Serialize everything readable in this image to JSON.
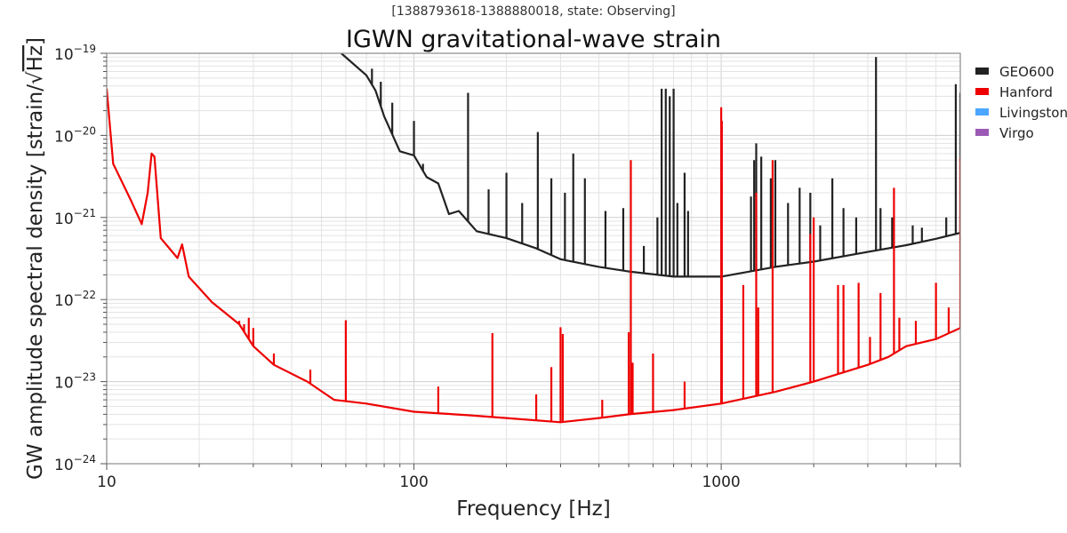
{
  "chart_data": {
    "type": "line",
    "subtitle": "[1388793618-1388880018, state: Observing]",
    "title": "IGWN gravitational-wave strain",
    "xlabel": "Frequency [Hz]",
    "ylabel_text": "GW amplitude spectral density [strain/",
    "ylabel_sqrt": "√",
    "ylabel_unit": "Hz",
    "ylabel_close": "]",
    "xscale": "log",
    "yscale": "log",
    "xlim": [
      10,
      6000
    ],
    "ylim": [
      1e-24,
      1e-19
    ],
    "grid": true,
    "legend_position": "outside-right",
    "xticks": [
      {
        "value": 10,
        "label": "10"
      },
      {
        "value": 100,
        "label": "100"
      },
      {
        "value": 1000,
        "label": "1000"
      }
    ],
    "yticks": [
      {
        "value": 1e-19,
        "base": "10",
        "exp": "−19"
      },
      {
        "value": 1e-20,
        "base": "10",
        "exp": "−20"
      },
      {
        "value": 1e-21,
        "base": "10",
        "exp": "−21"
      },
      {
        "value": 1e-22,
        "base": "10",
        "exp": "−22"
      },
      {
        "value": 1e-23,
        "base": "10",
        "exp": "−23"
      },
      {
        "value": 1e-24,
        "base": "10",
        "exp": "−24"
      }
    ],
    "series": [
      {
        "name": "GEO600",
        "color": "#222222",
        "baseline": [
          [
            58,
            1.3e-19
          ],
          [
            70,
            5.4e-20
          ],
          [
            75,
            3.5e-20
          ],
          [
            80,
            1.7e-20
          ],
          [
            90,
            6.4e-21
          ],
          [
            100,
            5.7e-21
          ],
          [
            110,
            3.1e-21
          ],
          [
            120,
            2.6e-21
          ],
          [
            130,
            1.1e-21
          ],
          [
            140,
            1.2e-21
          ],
          [
            160,
            6.8e-22
          ],
          [
            200,
            5.6e-22
          ],
          [
            250,
            4.2e-22
          ],
          [
            300,
            3.1e-22
          ],
          [
            400,
            2.5e-22
          ],
          [
            500,
            2.2e-22
          ],
          [
            700,
            1.9e-22
          ],
          [
            1000,
            1.9e-22
          ],
          [
            1500,
            2.5e-22
          ],
          [
            2000,
            2.9e-22
          ],
          [
            3000,
            3.8e-22
          ],
          [
            4000,
            4.6e-22
          ],
          [
            5000,
            5.5e-22
          ],
          [
            6000,
            6.5e-22
          ]
        ],
        "spikes": [
          [
            73,
            6.5e-20
          ],
          [
            78,
            4.5e-20
          ],
          [
            85,
            2.5e-20
          ],
          [
            100,
            1.5e-20
          ],
          [
            107,
            4.5e-21
          ],
          [
            150,
            3.3e-20
          ],
          [
            175,
            2.2e-21
          ],
          [
            200,
            3.5e-21
          ],
          [
            225,
            1.5e-21
          ],
          [
            253,
            1.1e-20
          ],
          [
            280,
            3e-21
          ],
          [
            310,
            2e-21
          ],
          [
            330,
            6e-21
          ],
          [
            360,
            3e-21
          ],
          [
            420,
            1.2e-21
          ],
          [
            480,
            1.3e-21
          ],
          [
            560,
            4.5e-22
          ],
          [
            620,
            1e-21
          ],
          [
            640,
            3.7e-20
          ],
          [
            660,
            3.7e-20
          ],
          [
            680,
            3e-20
          ],
          [
            700,
            3.7e-20
          ],
          [
            720,
            1.5e-21
          ],
          [
            760,
            3.5e-21
          ],
          [
            780,
            1.2e-21
          ],
          [
            1250,
            1.8e-21
          ],
          [
            1280,
            5e-21
          ],
          [
            1300,
            8e-21
          ],
          [
            1350,
            5.5e-21
          ],
          [
            1450,
            3e-21
          ],
          [
            1500,
            5e-21
          ],
          [
            1650,
            1.5e-21
          ],
          [
            1800,
            2.3e-21
          ],
          [
            1950,
            2e-21
          ],
          [
            2100,
            8e-22
          ],
          [
            2300,
            3e-21
          ],
          [
            2500,
            1.3e-21
          ],
          [
            2750,
            1e-21
          ],
          [
            3190,
            9e-20
          ],
          [
            3300,
            1.3e-21
          ],
          [
            3600,
            1e-21
          ],
          [
            4200,
            8e-22
          ],
          [
            4500,
            7.5e-22
          ],
          [
            5400,
            1e-21
          ],
          [
            5800,
            4.2e-20
          ],
          [
            6000,
            3.3e-20
          ]
        ]
      },
      {
        "name": "Hanford",
        "color": "#ee0000",
        "baseline": [
          [
            10,
            3.7e-20
          ],
          [
            10.5,
            4.5e-21
          ],
          [
            12,
            1.6e-21
          ],
          [
            13,
            8.3e-22
          ],
          [
            13.6,
            2e-21
          ],
          [
            14,
            6e-21
          ],
          [
            14.3,
            5.5e-21
          ],
          [
            15,
            5.6e-22
          ],
          [
            17,
            3.2e-22
          ],
          [
            17.6,
            4.7e-22
          ],
          [
            18.5,
            1.9e-22
          ],
          [
            22,
            9.3e-23
          ],
          [
            27,
            5e-23
          ],
          [
            30,
            2.7e-23
          ],
          [
            35,
            1.6e-23
          ],
          [
            45,
            1e-23
          ],
          [
            55,
            6e-24
          ],
          [
            70,
            5.4e-24
          ],
          [
            100,
            4.3e-24
          ],
          [
            150,
            3.9e-24
          ],
          [
            200,
            3.6e-24
          ],
          [
            300,
            3.2e-24
          ],
          [
            400,
            3.6e-24
          ],
          [
            500,
            4e-24
          ],
          [
            700,
            4.5e-24
          ],
          [
            1000,
            5.4e-24
          ],
          [
            1500,
            7.5e-24
          ],
          [
            2000,
            1e-23
          ],
          [
            3000,
            1.6e-23
          ],
          [
            3500,
            2e-23
          ],
          [
            4000,
            2.7e-23
          ],
          [
            5000,
            3.3e-23
          ],
          [
            6000,
            4.5e-23
          ]
        ],
        "spikes": [
          [
            27,
            5.5e-23
          ],
          [
            28,
            5e-23
          ],
          [
            29,
            6e-23
          ],
          [
            30,
            4.5e-23
          ],
          [
            35,
            2.2e-23
          ],
          [
            46,
            1.4e-23
          ],
          [
            60,
            5.6e-23
          ],
          [
            120,
            8.7e-24
          ],
          [
            180,
            3.9e-23
          ],
          [
            250,
            7e-24
          ],
          [
            280,
            1.5e-23
          ],
          [
            300,
            4.6e-23
          ],
          [
            305,
            3.8e-23
          ],
          [
            410,
            6e-24
          ],
          [
            500,
            4e-23
          ],
          [
            508,
            5e-21
          ],
          [
            515,
            1.7e-23
          ],
          [
            600,
            2.2e-23
          ],
          [
            760,
            1e-23
          ],
          [
            1000,
            2.2e-20
          ],
          [
            1005,
            1.5e-20
          ],
          [
            1180,
            1.5e-22
          ],
          [
            1300,
            2e-21
          ],
          [
            1320,
            8e-23
          ],
          [
            1470,
            5e-21
          ],
          [
            1950,
            6.3e-22
          ],
          [
            2000,
            1e-21
          ],
          [
            2400,
            1.5e-22
          ],
          [
            2500,
            1.5e-22
          ],
          [
            2800,
            1.6e-22
          ],
          [
            3050,
            3.5e-23
          ],
          [
            3300,
            1.2e-22
          ],
          [
            3650,
            2.3e-21
          ],
          [
            3800,
            6e-23
          ],
          [
            4300,
            5.5e-23
          ],
          [
            5000,
            1.6e-22
          ],
          [
            5500,
            8e-23
          ],
          [
            6000,
            5.3e-21
          ]
        ]
      },
      {
        "name": "Livingston",
        "color": "#4ba6ff",
        "baseline": [],
        "spikes": []
      },
      {
        "name": "Virgo",
        "color": "#9b59b6",
        "baseline": [],
        "spikes": []
      }
    ]
  }
}
